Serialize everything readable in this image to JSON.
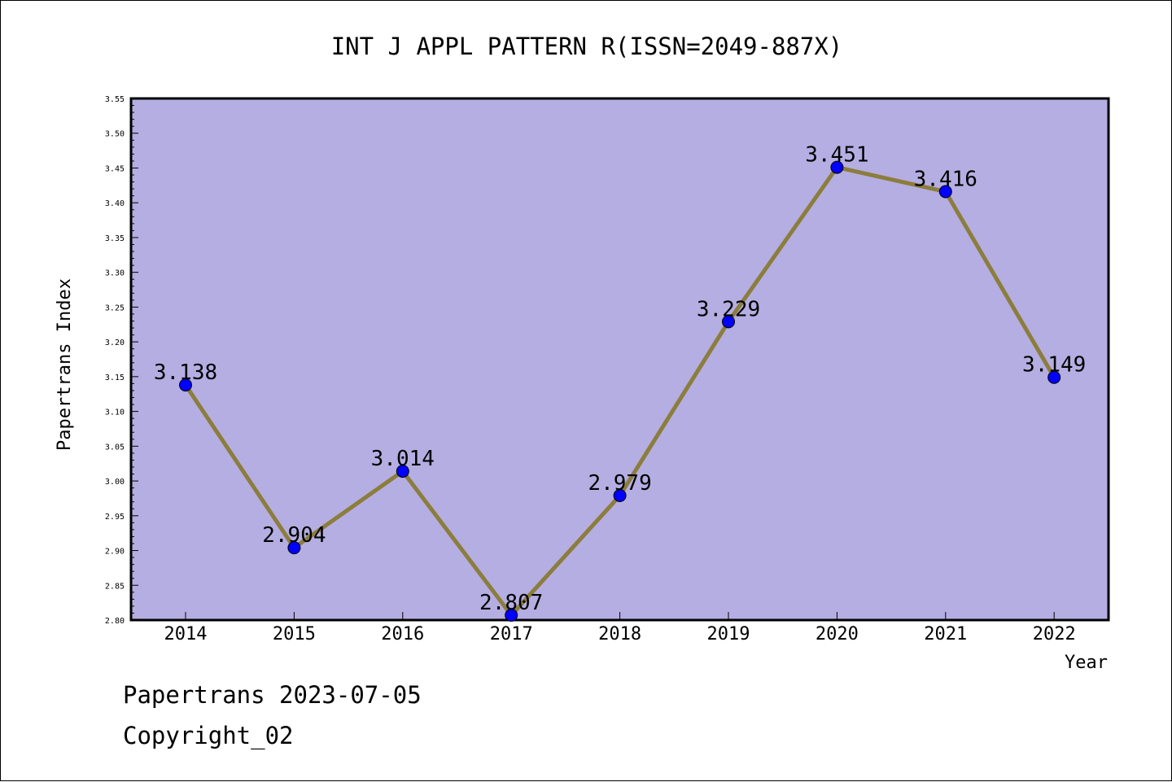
{
  "chart_data": {
    "type": "line",
    "title": "INT J APPL PATTERN R(ISSN=2049-887X)",
    "xlabel": "Year",
    "ylabel": "Papertrans Index",
    "categories": [
      "2014",
      "2015",
      "2016",
      "2017",
      "2018",
      "2019",
      "2020",
      "2021",
      "2022"
    ],
    "series": [
      {
        "values": [
          3.138,
          2.904,
          3.014,
          2.807,
          2.979,
          3.229,
          3.451,
          3.416,
          3.149
        ],
        "data_labels": [
          "3.138",
          "2.904",
          "3.014",
          "2.807",
          "2.979",
          "3.229",
          "3.451",
          "3.416",
          "3.149"
        ]
      }
    ],
    "ylim": [
      2.8,
      3.55
    ],
    "ytick_step": 0.05,
    "ytick_labels": [
      "2.80",
      "2.85",
      "2.90",
      "2.95",
      "3.00",
      "3.05",
      "3.10",
      "3.15",
      "3.20",
      "3.25",
      "3.30",
      "3.35",
      "3.40",
      "3.45",
      "3.50",
      "3.55"
    ],
    "grid": false,
    "legend": "none",
    "colors": {
      "plot_background": "#b5aee2",
      "line": "#8b7d3c",
      "marker": "#0000ff",
      "axis": "#000000"
    }
  },
  "footer": {
    "line1": "Papertrans 2023-07-05",
    "line2": "Copyright_02"
  }
}
